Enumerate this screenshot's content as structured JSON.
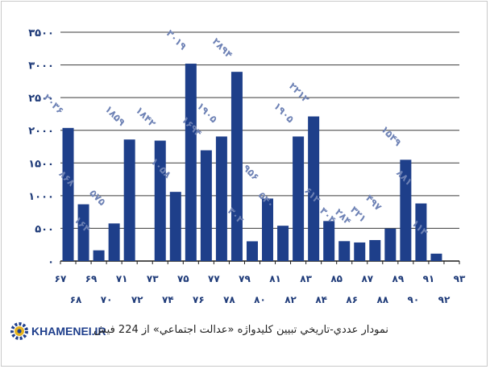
{
  "chart_data": {
    "type": "bar",
    "x_axis_numbers": [
      "۶۷",
      "۶۸",
      "۶۹",
      "۷۰",
      "۷۱",
      "۷۲",
      "۷۳",
      "۷۴",
      "۷۵",
      "۷۶",
      "۷۷",
      "۷۸",
      "۷۹",
      "۸۰",
      "۸۱",
      "۸۲",
      "۸۳",
      "۸۴",
      "۸۵",
      "۸۶",
      "۸۷",
      "۸۸",
      "۸۹",
      "۹۰",
      "۹۱",
      "۹۲",
      "۹۳"
    ],
    "bars": [
      {
        "x": "۶۸",
        "value": 2036,
        "label": "۲۰۳۶"
      },
      {
        "x": "۶۹",
        "value": 868,
        "label": "۸۶۸"
      },
      {
        "x": "۷۰",
        "value": 164,
        "label": "۱۶۴"
      },
      {
        "x": "۷۱",
        "value": 575,
        "label": "۵۷۵"
      },
      {
        "x": "۷۲",
        "value": 1859,
        "label": "۱۸۵۹"
      },
      {
        "x": "۷۴",
        "value": 1842,
        "label": "۱۸۴۲"
      },
      {
        "x": "۷۵",
        "value": 1058,
        "label": "۱۰۵۸"
      },
      {
        "x": "۷۶",
        "value": 3019,
        "label": "۳۰۱۹"
      },
      {
        "x": "۷۷",
        "value": 1694,
        "label": "۱۶۹۴"
      },
      {
        "x": "۷۸",
        "value": 1905,
        "label": "۱۹۰۵"
      },
      {
        "x": "۷۹",
        "value": 2894,
        "label": "۲۸۹۴"
      },
      {
        "x": "۸۰",
        "value": 302,
        "label": "۳۰۲"
      },
      {
        "x": "۸۱",
        "value": 956,
        "label": "۹۵۶"
      },
      {
        "x": "۸۲",
        "value": 540,
        "label": "۵۴۰"
      },
      {
        "x": "۸۳",
        "value": 1905,
        "label": "۱۹۰۵"
      },
      {
        "x": "۸۴",
        "value": 2212,
        "label": "۲۲۱۲"
      },
      {
        "x": "۸۵",
        "value": 612,
        "label": "۶۱۲"
      },
      {
        "x": "۸۶",
        "value": 304,
        "label": "۳۰۴"
      },
      {
        "x": "۸۷",
        "value": 284,
        "label": "۲۸۴"
      },
      {
        "x": "۸۸",
        "value": 321,
        "label": "۳۲۱"
      },
      {
        "x": "۸۹",
        "value": 497,
        "label": "۴۹۷"
      },
      {
        "x": "۹۰",
        "value": 1549,
        "label": "۱۵۴۹"
      },
      {
        "x": "۹۱",
        "value": 881,
        "label": "۸۸۱"
      },
      {
        "x": "۹۲",
        "value": 113,
        "label": "۱۱۳"
      }
    ],
    "y_ticks": [
      {
        "value": 0,
        "label": "۰"
      },
      {
        "value": 500,
        "label": "۵۰۰"
      },
      {
        "value": 1000,
        "label": "۱۰۰۰"
      },
      {
        "value": 1500,
        "label": "۱۵۰۰"
      },
      {
        "value": 2000,
        "label": "۲۰۰۰"
      },
      {
        "value": 2500,
        "label": "۲۵۰۰"
      },
      {
        "value": 3000,
        "label": "۳۰۰۰"
      },
      {
        "value": 3500,
        "label": "۳۵۰۰"
      }
    ],
    "ylim": [
      0,
      3500
    ],
    "grid": true,
    "bar_color": "#1e3f8a",
    "gridline_color": "#3a3a3a",
    "label_color": "#6e82b5"
  },
  "caption": "نمودار عددي-تاريخي تبيين كليدواژه «عدالت اجتماعي» از 224 فيش",
  "logo": {
    "text": "KHAMENEI.IR",
    "icon": "gear-logo-icon"
  }
}
